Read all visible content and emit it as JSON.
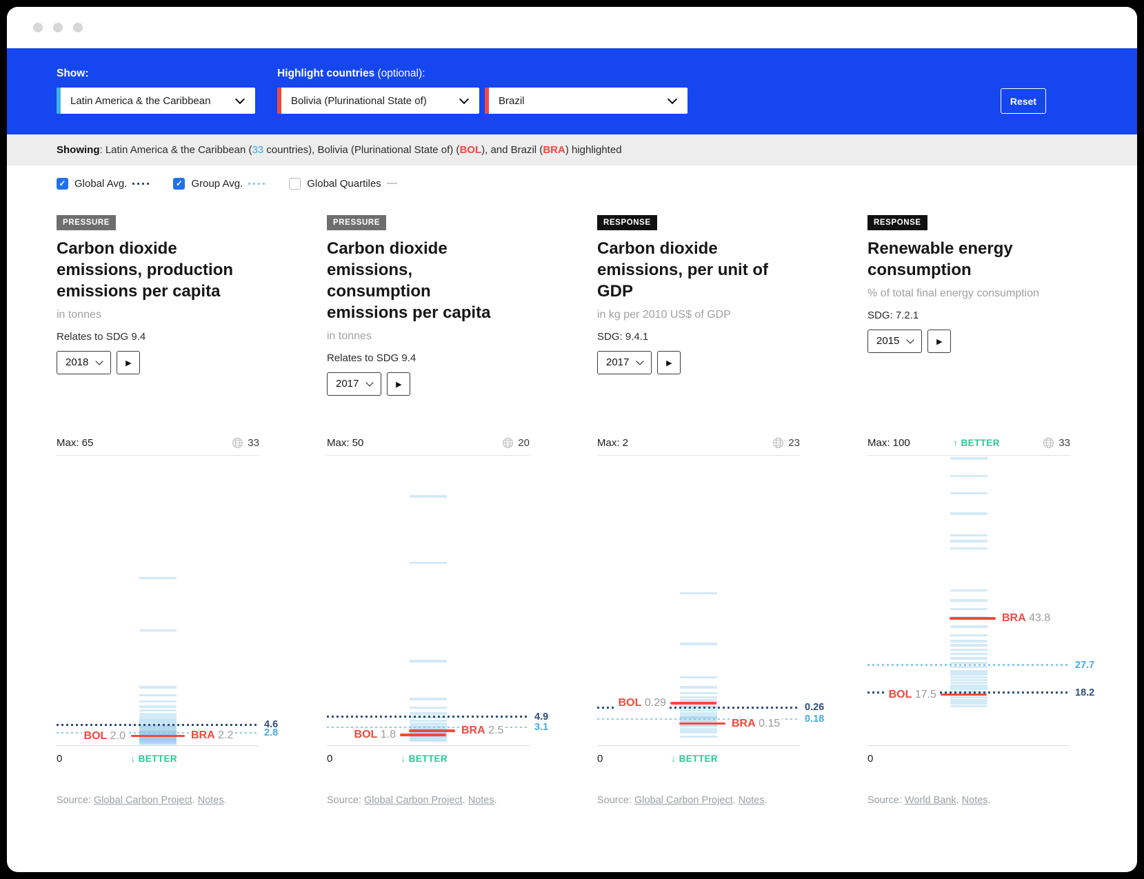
{
  "toolbar": {
    "show_label": "Show:",
    "highlight_label": "Highlight countries",
    "highlight_optional": " (optional):",
    "region_select_value": "Latin America & the Caribbean",
    "country_select_1_value": "Bolivia (Plurinational State of)",
    "country_select_2_value": "Brazil",
    "reset_label": "Reset"
  },
  "status_bar": {
    "label": "Showing",
    "part_region": ": Latin America & the Caribbean (",
    "count": "33",
    "part_mid": " countries), Bolivia (Plurinational State of) (",
    "bol": "BOL",
    "part_mid2": "), and Brazil (",
    "bra": "BRA",
    "part_end": ") highlighted"
  },
  "legend": {
    "items": [
      {
        "label": "Global Avg.",
        "checked": true,
        "style": "navy-dotted"
      },
      {
        "label": "Group Avg.",
        "checked": true,
        "style": "blue-dotted"
      },
      {
        "label": "Global Quartiles",
        "checked": false,
        "style": "gray-solid"
      }
    ]
  },
  "panels": [
    {
      "badge": "PRESSURE",
      "title": "Carbon dioxide\nemissions, production\nemissions per capita",
      "subtitle": "in tonnes",
      "sdg": "Relates to SDG 9.4",
      "year": "2018",
      "max_label": "Max: 65",
      "count": "33",
      "better_top_arrow": "",
      "better_top_text": "",
      "better_bottom_arrow": "↓",
      "better_bottom_text": "BETTER",
      "zero_label": "0",
      "source_prefix": "Source: ",
      "source_link": "Global Carbon Project",
      "source_sep": ". ",
      "notes_link": "Notes",
      "source_end": "."
    },
    {
      "badge": "PRESSURE",
      "title": "Carbon dioxide\nemissions,\nconsumption\nemissions per capita",
      "subtitle": "in tonnes",
      "sdg": "Relates to SDG 9.4",
      "year": "2017",
      "max_label": "Max: 50",
      "count": "20",
      "better_top_arrow": "",
      "better_top_text": "",
      "better_bottom_arrow": "↓",
      "better_bottom_text": "BETTER",
      "zero_label": "0",
      "source_prefix": "Source: ",
      "source_link": "Global Carbon Project",
      "source_sep": ". ",
      "notes_link": "Notes",
      "source_end": "."
    },
    {
      "badge": "RESPONSE",
      "title": "Carbon dioxide\nemissions, per unit of\nGDP",
      "subtitle": "in kg per 2010 US$ of GDP",
      "sdg": "SDG: 9.4.1",
      "year": "2017",
      "max_label": "Max: 2",
      "count": "23",
      "better_top_arrow": "",
      "better_top_text": "",
      "better_bottom_arrow": "↓",
      "better_bottom_text": "BETTER",
      "zero_label": "0",
      "source_prefix": "Source: ",
      "source_link": "Global Carbon Project",
      "source_sep": ". ",
      "notes_link": "Notes",
      "source_end": "."
    },
    {
      "badge": "RESPONSE",
      "title": "Renewable energy\nconsumption",
      "subtitle": "% of total final energy consumption",
      "sdg": "SDG: 7.2.1",
      "year": "2015",
      "max_label": "Max: 100",
      "count": "33",
      "better_top_arrow": "↑",
      "better_top_text": "BETTER",
      "better_bottom_arrow": "",
      "better_bottom_text": "",
      "zero_label": "0",
      "source_prefix": "Source: ",
      "source_link": "World Bank",
      "source_sep": ". ",
      "notes_link": "Notes",
      "source_end": "."
    }
  ],
  "chart_data": [
    {
      "type": "strip",
      "indicator": "Carbon dioxide emissions, production emissions per capita",
      "unit": "tonnes",
      "year": 2018,
      "axis": {
        "min": 0,
        "max": 65
      },
      "countries_with_data": 33,
      "global_avg": 4.6,
      "global_avg_label": "4.6",
      "group_avg": 2.8,
      "group_avg_label": "2.8",
      "highlights": [
        {
          "code": "BOL",
          "value": 2.0,
          "label": "2.0"
        },
        {
          "code": "BRA",
          "value": 2.2,
          "label": "2.2"
        }
      ],
      "country_values_estimated": [
        0.3,
        0.6,
        0.9,
        1.1,
        1.3,
        1.5,
        1.7,
        1.9,
        2.0,
        2.1,
        2.2,
        2.4,
        2.6,
        2.8,
        3.0,
        3.2,
        3.4,
        3.7,
        4.0,
        4.3,
        4.6,
        5.0,
        5.4,
        5.9,
        6.4,
        7.0,
        7.8,
        8.7,
        9.8,
        11.2,
        13.0,
        25.8,
        37.5
      ]
    },
    {
      "type": "strip",
      "indicator": "Carbon dioxide emissions, consumption emissions per capita",
      "unit": "tonnes",
      "year": 2017,
      "axis": {
        "min": 0,
        "max": 50
      },
      "countries_with_data": 20,
      "global_avg": 4.9,
      "global_avg_label": "4.9",
      "group_avg": 3.1,
      "group_avg_label": "3.1",
      "highlights": [
        {
          "code": "BOL",
          "value": 1.8,
          "label": "1.8"
        },
        {
          "code": "BRA",
          "value": 2.5,
          "label": "2.5"
        }
      ],
      "country_values_estimated": [
        0.8,
        1.1,
        1.4,
        1.6,
        1.8,
        2.0,
        2.2,
        2.5,
        2.7,
        3.0,
        3.3,
        3.7,
        4.2,
        4.8,
        5.5,
        6.5,
        8.0,
        14.5,
        31.5,
        43.0
      ]
    },
    {
      "type": "strip",
      "indicator": "Carbon dioxide emissions, per unit of GDP",
      "unit": "kg per 2010 US$ of GDP",
      "year": 2017,
      "axis": {
        "min": 0,
        "max": 2
      },
      "countries_with_data": 23,
      "global_avg": 0.26,
      "global_avg_label": "0.26",
      "group_avg": 0.18,
      "group_avg_label": "0.18",
      "highlights": [
        {
          "code": "BOL",
          "value": 0.29,
          "label": "0.29"
        },
        {
          "code": "BRA",
          "value": 0.15,
          "label": "0.15"
        }
      ],
      "country_values_estimated": [
        0.06,
        0.09,
        0.11,
        0.13,
        0.14,
        0.15,
        0.16,
        0.17,
        0.18,
        0.19,
        0.2,
        0.22,
        0.24,
        0.26,
        0.27,
        0.29,
        0.31,
        0.33,
        0.36,
        0.4,
        0.47,
        0.7,
        1.05
      ]
    },
    {
      "type": "strip",
      "indicator": "Renewable energy consumption",
      "unit": "% of total final energy consumption",
      "year": 2015,
      "axis": {
        "min": 0,
        "max": 100
      },
      "countries_with_data": 33,
      "global_avg": 18.2,
      "global_avg_label": "18.2",
      "group_avg": 27.7,
      "group_avg_label": "27.7",
      "highlights": [
        {
          "code": "BOL",
          "value": 17.5,
          "label": "17.5"
        },
        {
          "code": "BRA",
          "value": 43.8,
          "label": "43.8"
        }
      ],
      "country_values_estimated": [
        13.5,
        14.5,
        15.5,
        16.5,
        17.5,
        18.5,
        19.5,
        20.5,
        21.5,
        22.5,
        23.5,
        24.5,
        25.5,
        27,
        28.5,
        30,
        31.5,
        33,
        34.5,
        36,
        38,
        41,
        44,
        47,
        50,
        53.5,
        68,
        70.5,
        72.5,
        80,
        87,
        93,
        99
      ]
    }
  ],
  "colors": {
    "banner_blue": "#1546ef",
    "accent_cyan": "#3cb4e8",
    "accent_red": "#f4473d",
    "global_avg_navy": "#2e4d7a",
    "group_avg_blue": "#8cc9ef",
    "group_avg_text": "#45aae4",
    "better_green": "#2ec693",
    "strip_blue": "#389edc"
  }
}
